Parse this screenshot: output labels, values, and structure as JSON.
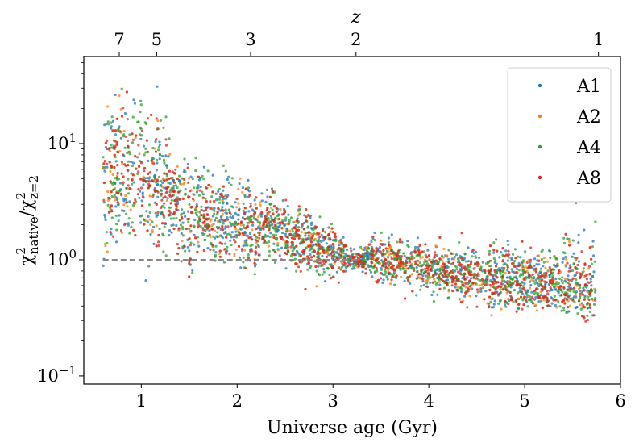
{
  "chart_data": {
    "type": "scatter",
    "xlabel": "Universe age (Gyr)",
    "ylabel": {
      "main": "χ",
      "sup": "2",
      "sub_native": "native",
      "slash": "/",
      "sub_z": "z=2"
    },
    "top_axis_label": "z",
    "xlim": [
      0.4,
      6.0
    ],
    "ylim_log10": [
      -1.07,
      1.75
    ],
    "y_scale": "log",
    "x_ticks": [
      "1",
      "2",
      "3",
      "4",
      "5",
      "6"
    ],
    "y_ticks": [
      {
        "base": "10",
        "exp": "−1",
        "value": 0.1
      },
      {
        "base": "10",
        "exp": "0",
        "value": 1
      },
      {
        "base": "10",
        "exp": "1",
        "value": 10
      }
    ],
    "top_ticks": [
      {
        "label": "7",
        "age": 0.77
      },
      {
        "label": "5",
        "age": 1.16
      },
      {
        "label": "3",
        "age": 2.14
      },
      {
        "label": "2",
        "age": 3.24
      },
      {
        "label": "1",
        "age": 5.77
      }
    ],
    "reference_line": {
      "y": 1.0,
      "style": "dashed",
      "color": "#888888"
    },
    "legend_position": "top-right",
    "grid": false,
    "series": [
      {
        "name": "A1",
        "color": "#1f77b4"
      },
      {
        "name": "A2",
        "color": "#ff7f0e"
      },
      {
        "name": "A4",
        "color": "#2ca02c"
      },
      {
        "name": "A8",
        "color": "#d62728"
      }
    ],
    "trend_points": [
      [
        0.62,
        4.0
      ],
      [
        0.8,
        6.5
      ],
      [
        1.0,
        5.2
      ],
      [
        1.2,
        4.0
      ],
      [
        1.4,
        3.2
      ],
      [
        1.6,
        2.8
      ],
      [
        1.8,
        2.4
      ],
      [
        2.0,
        2.0
      ],
      [
        2.2,
        1.7
      ],
      [
        2.35,
        2.2
      ],
      [
        2.6,
        1.6
      ],
      [
        2.9,
        1.2
      ],
      [
        3.2,
        1.0
      ],
      [
        3.5,
        1.0
      ],
      [
        3.7,
        0.95
      ],
      [
        4.0,
        0.85
      ],
      [
        4.3,
        0.75
      ],
      [
        4.6,
        0.72
      ],
      [
        4.9,
        0.7
      ],
      [
        5.2,
        0.65
      ],
      [
        5.5,
        0.6
      ],
      [
        5.72,
        0.5
      ]
    ]
  }
}
